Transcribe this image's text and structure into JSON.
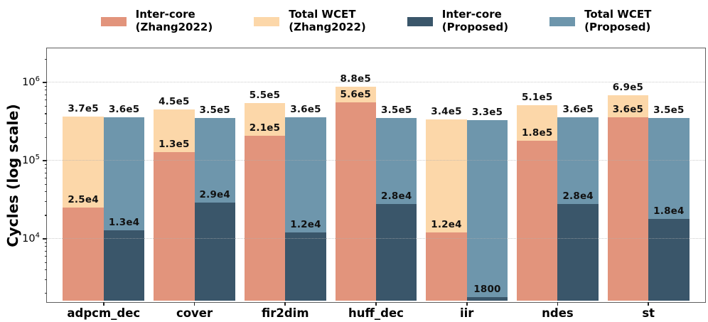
{
  "chart_data": {
    "type": "bar",
    "title": "",
    "xlabel": "",
    "ylabel": "Cycles (log scale)",
    "yscale": "log",
    "ylim": [
      1550,
      2750000
    ],
    "grid": "major-y-dotted",
    "legend_position": "top",
    "categories": [
      "adpcm_dec",
      "cover",
      "fir2dim",
      "huff_dec",
      "iir",
      "ndes",
      "st"
    ],
    "yticks": [
      {
        "base": "10",
        "exponent": "4",
        "value": 10000
      },
      {
        "base": "10",
        "exponent": "5",
        "value": 100000
      },
      {
        "base": "10",
        "exponent": "6",
        "value": 1000000
      }
    ],
    "series": [
      {
        "id": "inter-zhang",
        "name_line1": "Inter-core",
        "name_line2": "(Zhang2022)",
        "color": "#E2947C",
        "pair": 0,
        "layer": "front",
        "values": [
          25000,
          130000,
          210000,
          560000,
          12000,
          180000,
          360000
        ],
        "labels": [
          "2.5e4",
          "1.3e5",
          "2.1e5",
          "5.6e5",
          "1.2e4",
          "1.8e5",
          "3.6e5"
        ]
      },
      {
        "id": "total-zhang",
        "name_line1": "Total WCET",
        "name_line2": "(Zhang2022)",
        "color": "#FCD7A9",
        "pair": 0,
        "layer": "back",
        "values": [
          370000,
          450000,
          550000,
          880000,
          340000,
          510000,
          690000
        ],
        "labels": [
          "3.7e5",
          "4.5e5",
          "5.5e5",
          "8.8e5",
          "3.4e5",
          "5.1e5",
          "6.9e5"
        ]
      },
      {
        "id": "inter-proposed",
        "name_line1": "Inter-core",
        "name_line2": "(Proposed)",
        "color": "#3A566A",
        "pair": 1,
        "layer": "front",
        "values": [
          13000,
          29000,
          12000,
          28000,
          1800,
          28000,
          18000
        ],
        "labels": [
          "1.3e4",
          "2.9e4",
          "1.2e4",
          "2.8e4",
          "1800",
          "2.8e4",
          "1.8e4"
        ]
      },
      {
        "id": "total-proposed",
        "name_line1": "Total WCET",
        "name_line2": "(Proposed)",
        "color": "#6E96AC",
        "pair": 1,
        "layer": "back",
        "values": [
          360000,
          350000,
          360000,
          350000,
          330000,
          360000,
          350000
        ],
        "labels": [
          "3.6e5",
          "3.5e5",
          "3.6e5",
          "3.5e5",
          "3.3e5",
          "3.6e5",
          "3.5e5"
        ]
      }
    ]
  }
}
